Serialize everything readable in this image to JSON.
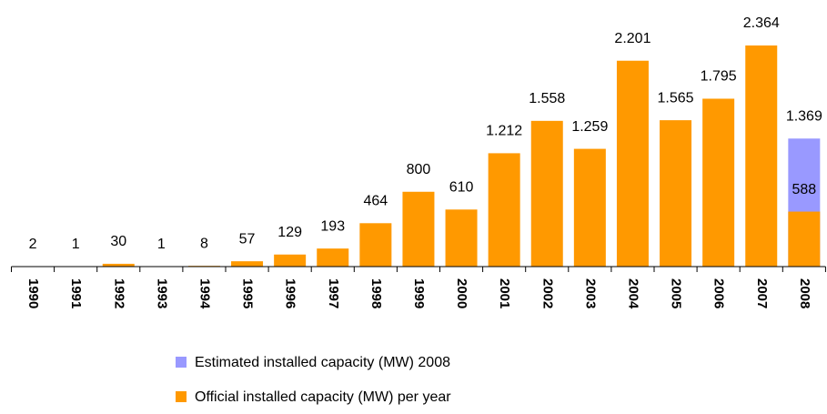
{
  "chart_data": {
    "type": "bar",
    "overlap": true,
    "categories": [
      "1990",
      "1991",
      "1992",
      "1993",
      "1994",
      "1995",
      "1996",
      "1997",
      "1998",
      "1999",
      "2000",
      "2001",
      "2002",
      "2003",
      "2004",
      "2005",
      "2006",
      "2007",
      "2008"
    ],
    "series": [
      {
        "name": "Estimated installed capacity (MW) 2008",
        "color": "#9999ff",
        "values": [
          null,
          null,
          null,
          null,
          null,
          null,
          null,
          null,
          null,
          null,
          null,
          null,
          null,
          null,
          null,
          null,
          null,
          null,
          1369
        ],
        "value_labels": [
          null,
          null,
          null,
          null,
          null,
          null,
          null,
          null,
          null,
          null,
          null,
          null,
          null,
          null,
          null,
          null,
          null,
          null,
          "1.369"
        ]
      },
      {
        "name": "Official installed capacity (MW) per year",
        "color": "#ff9900",
        "values": [
          2,
          1,
          30,
          1,
          8,
          57,
          129,
          193,
          464,
          800,
          610,
          1212,
          1558,
          1259,
          2201,
          1565,
          1795,
          2364,
          588
        ],
        "value_labels": [
          "2",
          "1",
          "30",
          "1",
          "8",
          "57",
          "129",
          "193",
          "464",
          "800",
          "610",
          "1.212",
          "1.558",
          "1.259",
          "2.201",
          "1.565",
          "1.795",
          "2.364",
          "588"
        ]
      }
    ],
    "ylim": [
      0,
      2500
    ],
    "legend": "bottom"
  }
}
